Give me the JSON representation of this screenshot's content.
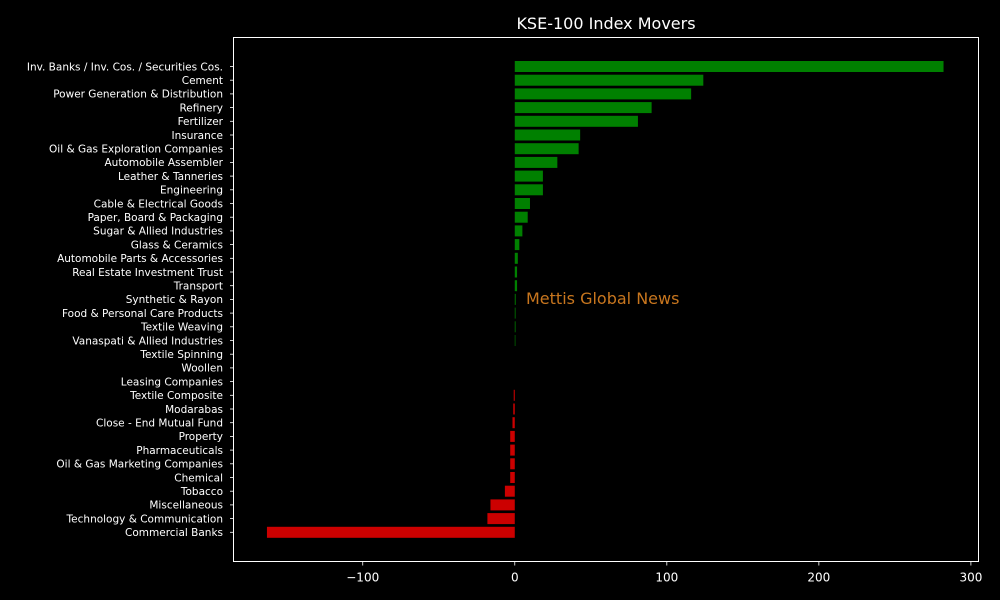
{
  "chart_data": {
    "type": "bar",
    "orientation": "horizontal",
    "title": "KSE-100 Index Movers",
    "xlabel": "",
    "ylabel": "",
    "xlim": [
      -185,
      305
    ],
    "xticks": [
      -100,
      0,
      100,
      200,
      300
    ],
    "xtick_labels": [
      "−100",
      "0",
      "100",
      "200",
      "300"
    ],
    "grid": false,
    "colors": {
      "positive": "#008000",
      "negative": "#cc0000",
      "background": "#000000",
      "axis": "#ffffff",
      "watermark": "#c8761e"
    },
    "categories": [
      "Inv. Banks / Inv. Cos. / Securities Cos.",
      "Cement",
      "Power Generation & Distribution",
      "Refinery",
      "Fertilizer",
      "Insurance",
      "Oil & Gas Exploration Companies",
      "Automobile Assembler",
      "Leather & Tanneries",
      "Engineering",
      "Cable & Electrical Goods",
      "Paper, Board & Packaging",
      "Sugar & Allied Industries",
      "Glass & Ceramics",
      "Automobile Parts & Accessories",
      "Real Estate Investment Trust",
      "Transport",
      "Synthetic & Rayon",
      "Food & Personal Care Products",
      "Textile Weaving",
      "Vanaspati & Allied Industries",
      "Textile Spinning",
      "Woollen",
      "Leasing Companies",
      "Textile Composite",
      "Modarabas",
      "Close - End Mutual Fund",
      "Property",
      "Pharmaceuticals",
      "Oil & Gas Marketing Companies",
      "Chemical",
      "Tobacco",
      "Miscellaneous",
      "Technology & Communication",
      "Commercial Banks"
    ],
    "values": [
      282,
      124,
      116,
      90,
      81,
      43,
      42,
      28,
      18.5,
      18.5,
      10,
      8.5,
      5,
      3,
      2,
      1.5,
      1.5,
      0.6,
      0.5,
      0.5,
      0.4,
      0,
      0,
      0,
      -0.7,
      -1,
      -1.5,
      -3,
      -3,
      -3,
      -3,
      -6.5,
      -16,
      -18,
      -163
    ]
  },
  "watermark": "Mettis Global News"
}
